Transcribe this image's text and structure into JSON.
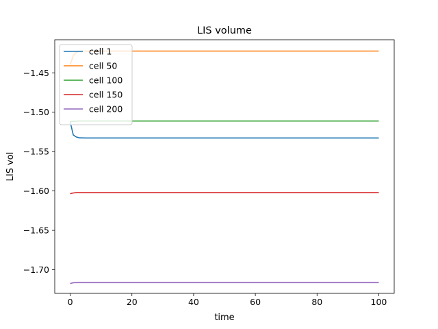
{
  "chart_data": {
    "type": "line",
    "title": "LIS volume",
    "xlabel": "time",
    "ylabel": "LIS vol",
    "xlim": [
      -5,
      105
    ],
    "ylim": [
      -1.73,
      -1.408
    ],
    "xticks": [
      0,
      20,
      40,
      60,
      80,
      100
    ],
    "xtick_labels": [
      "0",
      "20",
      "40",
      "60",
      "80",
      "100"
    ],
    "yticks": [
      -1.7,
      -1.65,
      -1.6,
      -1.55,
      -1.5,
      -1.45
    ],
    "ytick_labels": [
      "−1.70",
      "−1.65",
      "−1.60",
      "−1.55",
      "−1.50",
      "−1.45"
    ],
    "grid": false,
    "legend_position": "top-left",
    "series": [
      {
        "name": "cell 1",
        "color": "#1f77b4",
        "x": [
          0,
          1,
          2,
          3,
          5,
          10,
          20,
          40,
          60,
          80,
          100
        ],
        "y": [
          -1.512,
          -1.529,
          -1.5315,
          -1.5325,
          -1.5327,
          -1.5327,
          -1.5327,
          -1.5327,
          -1.5327,
          -1.5327,
          -1.5327
        ]
      },
      {
        "name": "cell 50",
        "color": "#ff7f0e",
        "x": [
          0,
          1,
          2,
          3,
          5,
          10,
          20,
          40,
          60,
          80,
          100
        ],
        "y": [
          -1.44,
          -1.428,
          -1.424,
          -1.4225,
          -1.4224,
          -1.4224,
          -1.4224,
          -1.4224,
          -1.4224,
          -1.4224,
          -1.4224
        ]
      },
      {
        "name": "cell 100",
        "color": "#2ca02c",
        "x": [
          0,
          1,
          2,
          3,
          5,
          10,
          20,
          40,
          60,
          80,
          100
        ],
        "y": [
          -1.512,
          -1.5115,
          -1.5113,
          -1.5112,
          -1.5112,
          -1.5112,
          -1.5112,
          -1.5112,
          -1.5112,
          -1.5112,
          -1.5112
        ]
      },
      {
        "name": "cell 150",
        "color": "#d62728",
        "x": [
          0,
          1,
          2,
          3,
          5,
          10,
          20,
          40,
          60,
          80,
          100
        ],
        "y": [
          -1.6035,
          -1.6025,
          -1.6022,
          -1.6022,
          -1.6022,
          -1.6022,
          -1.6022,
          -1.6022,
          -1.6022,
          -1.6022,
          -1.6022
        ]
      },
      {
        "name": "cell 200",
        "color": "#9467bd",
        "x": [
          0,
          1,
          2,
          3,
          5,
          10,
          20,
          40,
          60,
          80,
          100
        ],
        "y": [
          -1.7175,
          -1.7165,
          -1.7163,
          -1.7163,
          -1.7163,
          -1.7163,
          -1.7163,
          -1.7163,
          -1.7163,
          -1.7163,
          -1.7163
        ]
      }
    ]
  }
}
